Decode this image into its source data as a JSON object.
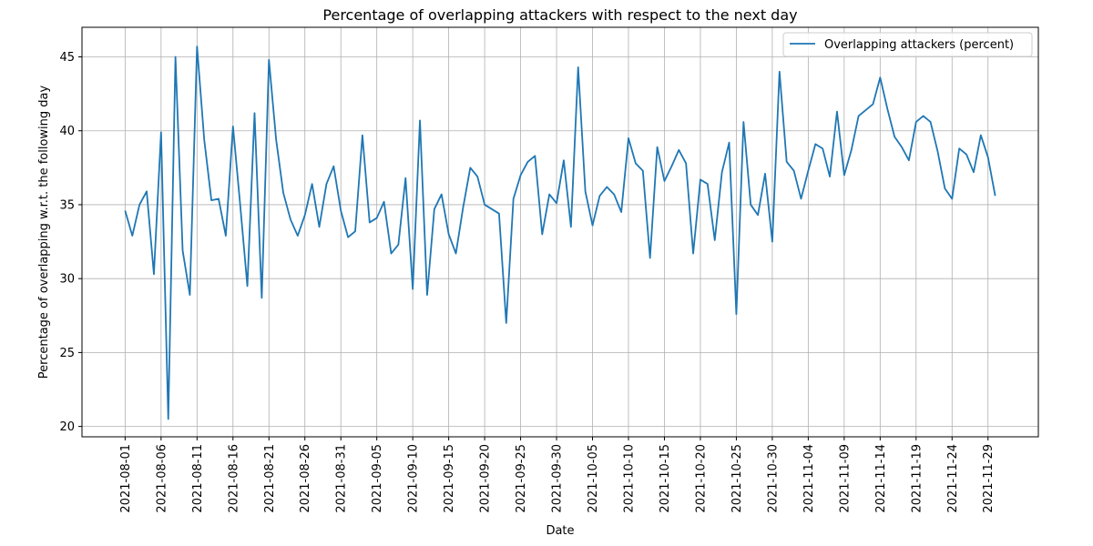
{
  "chart_data": {
    "type": "line",
    "title": "Percentage of overlapping attackers with respect to the next day",
    "xlabel": "Date",
    "ylabel": "Percentage of overlapping w.r.t. the following day",
    "start_date": "2021-08-01",
    "xlim": [
      "2021-07-26",
      "2021-12-06"
    ],
    "ylim": [
      19.3,
      47.0
    ],
    "yticks": [
      20,
      25,
      30,
      35,
      40,
      45
    ],
    "xticks": [
      "2021-08-01",
      "2021-08-06",
      "2021-08-11",
      "2021-08-16",
      "2021-08-21",
      "2021-08-26",
      "2021-08-31",
      "2021-09-05",
      "2021-09-10",
      "2021-09-15",
      "2021-09-20",
      "2021-09-25",
      "2021-09-30",
      "2021-10-05",
      "2021-10-10",
      "2021-10-15",
      "2021-10-20",
      "2021-10-25",
      "2021-10-30",
      "2021-11-04",
      "2021-11-09",
      "2021-11-14",
      "2021-11-19",
      "2021-11-24",
      "2021-11-29"
    ],
    "grid": true,
    "legend_position": "top-right",
    "series": [
      {
        "name": "Overlapping attackers (percent)",
        "color": "#1f77b4",
        "values": [
          34.6,
          32.9,
          35.0,
          35.9,
          30.3,
          39.9,
          20.5,
          45.0,
          31.9,
          28.9,
          45.7,
          39.4,
          35.3,
          35.4,
          32.9,
          40.3,
          35.0,
          29.5,
          41.2,
          28.7,
          44.8,
          39.4,
          35.8,
          34.0,
          32.9,
          34.3,
          36.4,
          33.5,
          36.4,
          37.6,
          34.6,
          32.8,
          33.2,
          39.7,
          33.8,
          34.1,
          35.2,
          31.7,
          32.3,
          36.8,
          29.3,
          40.7,
          28.9,
          34.7,
          35.7,
          33.0,
          31.7,
          34.8,
          37.5,
          36.9,
          35.0,
          34.7,
          34.4,
          27.0,
          35.4,
          37.0,
          37.9,
          38.3,
          33.0,
          35.7,
          35.1,
          38.0,
          33.5,
          44.3,
          35.9,
          33.6,
          35.6,
          36.2,
          35.7,
          34.5,
          39.5,
          37.8,
          37.3,
          31.4,
          38.9,
          36.6,
          37.6,
          38.7,
          37.8,
          31.7,
          36.7,
          36.4,
          32.6,
          37.2,
          39.2,
          27.6,
          40.6,
          35.0,
          34.3,
          37.1,
          32.5,
          44.0,
          37.9,
          37.3,
          35.4,
          37.3,
          39.1,
          38.8,
          36.9,
          41.3,
          37.0,
          38.7,
          41.0,
          41.4,
          41.8,
          43.6,
          41.5,
          39.6,
          38.9,
          38.0,
          40.6,
          41.0,
          40.6,
          38.6,
          36.1,
          35.4,
          38.8,
          38.4,
          37.2,
          39.7,
          38.2,
          35.6
        ]
      }
    ]
  }
}
